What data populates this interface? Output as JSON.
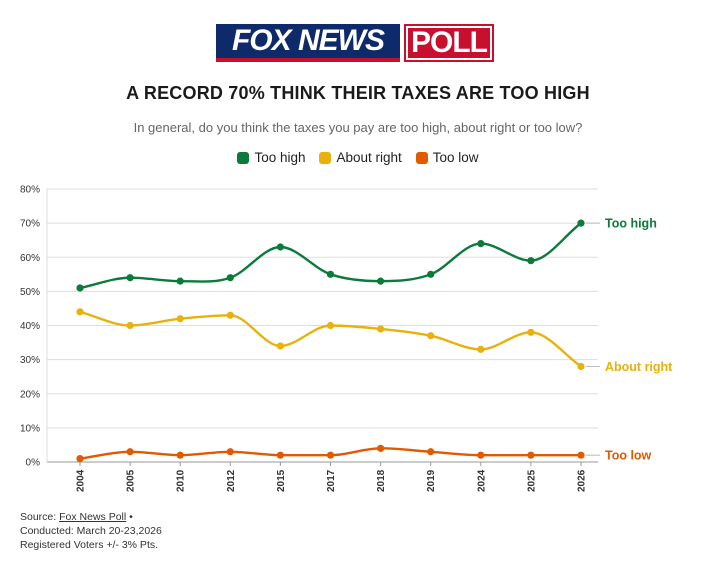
{
  "logo": {
    "fox_text": "FOX NEWS",
    "poll_text": "POLL",
    "fox_color": "#0f2a6b",
    "poll_color": "#c8102e"
  },
  "chart_data": {
    "type": "line",
    "title": "A RECORD 70% THINK THEIR TAXES ARE TOO HIGH",
    "subtitle": "In general, do you think the taxes you pay are too high, about right or too low?",
    "categories": [
      "2004",
      "2005",
      "2010",
      "2012",
      "2015",
      "2017",
      "2018",
      "2019",
      "2024",
      "2025",
      "2026"
    ],
    "series": [
      {
        "name": "Too high",
        "color": "#0b7a3b",
        "values": [
          51,
          54,
          53,
          54,
          63,
          55,
          53,
          55,
          64,
          59,
          70
        ]
      },
      {
        "name": "About right",
        "color": "#e8b10e",
        "values": [
          44,
          40,
          42,
          43,
          34,
          40,
          39,
          37,
          33,
          38,
          28
        ]
      },
      {
        "name": "Too low",
        "color": "#e05a00",
        "values": [
          1,
          3,
          2,
          3,
          2,
          2,
          4,
          3,
          2,
          2,
          2
        ]
      }
    ],
    "ylim": [
      0,
      80
    ],
    "yticks": [
      "0%",
      "10%",
      "20%",
      "30%",
      "40%",
      "50%",
      "60%",
      "70%",
      "80%"
    ],
    "legend_position": "top",
    "grid": true
  },
  "source": {
    "label": "Source:",
    "link_text": "Fox News Poll",
    "bullet": "•",
    "conducted": "Conducted: March 20-23,2026",
    "voters": "Registered Voters +/- 3% Pts."
  }
}
